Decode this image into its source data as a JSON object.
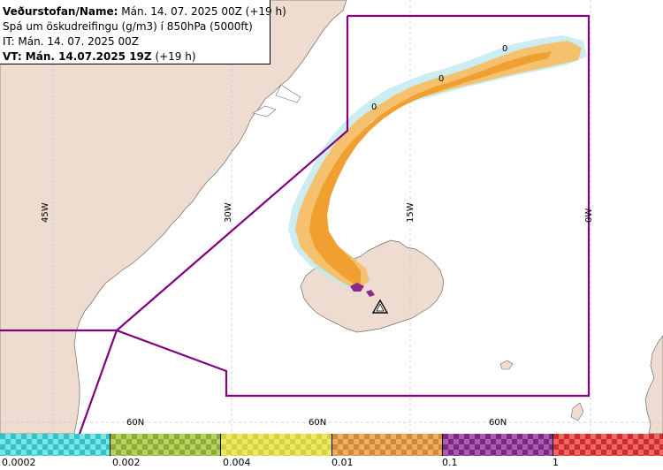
{
  "header": {
    "line1_label": "Veðurstofan/Name:",
    "line1_value": "Mán. 14. 07. 2025 00Z (+19 h)",
    "line2": "Spá um öskudreifingu (g/m3) í 850hPa (5000ft)",
    "line3": "IT: Mán. 14. 07. 2025 00Z",
    "line4_label": "VT: Mán. 14.07.2025 19Z",
    "line4_value": "(+19 h)"
  },
  "map": {
    "longitude_labels": [
      "45W",
      "30W",
      "15W",
      "0W"
    ],
    "latitude_labels": [
      "60N",
      "60N",
      "60N"
    ],
    "contour_labels": [
      "0",
      "0",
      "0"
    ],
    "colors": {
      "land": "#efdcd0",
      "sea": "#ffffff",
      "boundary": "#800080",
      "grid": "#b8c4d6",
      "ash_light": "#f5c16e",
      "ash_medium": "#f0a030",
      "ash_high": "#8a2a8a",
      "ash_trace": "#9ad8e0"
    },
    "volcano_icon": "volcano-triangle-icon"
  },
  "legend": {
    "labels": [
      "0.0002",
      "0.002",
      "0.004",
      "0.01",
      "0.1",
      "1"
    ],
    "colors": [
      "#2fc4c8",
      "#8cae2a",
      "#d6d23a",
      "#d28a30",
      "#7a2a7e",
      "#d02a2a"
    ],
    "colors_light": [
      "#7ee3e5",
      "#b8d06a",
      "#ece86e",
      "#eab06a",
      "#ab5cb0",
      "#ea6a6a"
    ]
  }
}
